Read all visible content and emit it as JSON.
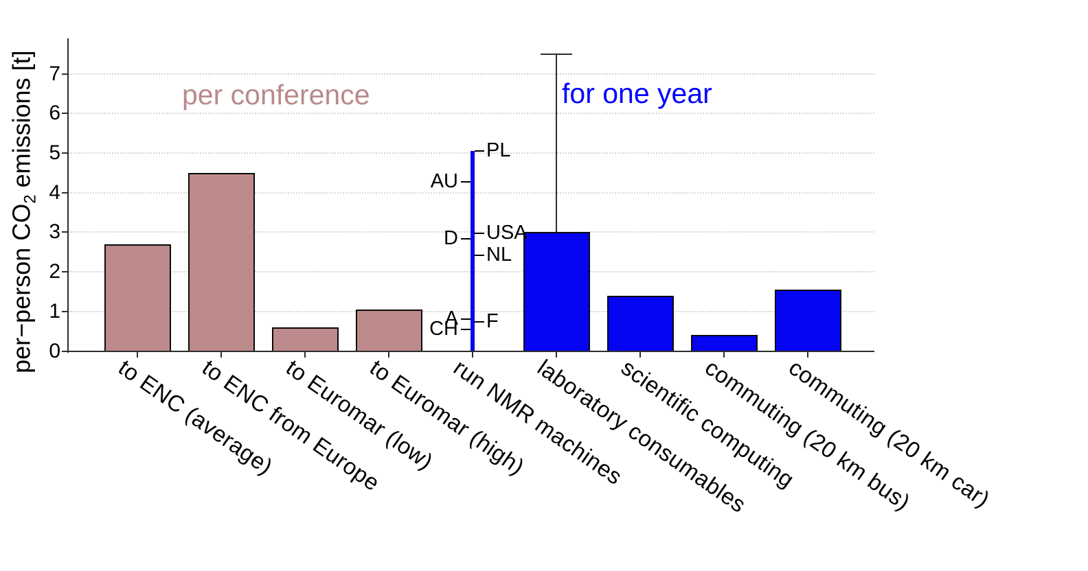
{
  "chart_data": {
    "type": "bar",
    "title": "",
    "ylabel": "per-person CO2 emissions [t]",
    "ylabel_parts": {
      "pre": "per−person CO",
      "sub": "2",
      "post": " emissions [t]"
    },
    "xlabel": "",
    "ylim": [
      0,
      7.85
    ],
    "yticks": [
      0,
      1,
      2,
      3,
      4,
      5,
      6,
      7
    ],
    "grid": "horizontal-dotted",
    "legend_position": "none",
    "categories": [
      "to ENC (average)",
      "to ENC from Europe",
      "to Euromar (low)",
      "to Euromar (high)",
      "run NMR machines",
      "laboratory consumables",
      "scientific computing",
      "commuting (20 km bus)",
      "commuting (20 km car)"
    ],
    "values": [
      2.7,
      4.5,
      0.6,
      1.05,
      5.05,
      3.0,
      1.4,
      0.4,
      1.55
    ],
    "groups": [
      {
        "label": "per conference",
        "color": "#bc8a8a",
        "category_indices": [
          0,
          1,
          2,
          3
        ]
      },
      {
        "label": "for one year",
        "color": "#0505f2",
        "category_indices": [
          4,
          5,
          6,
          7,
          8
        ]
      }
    ],
    "nmr_line": {
      "category": "run NMR machines",
      "style": "thin-vertical-line",
      "top_value": 5.05,
      "markers": [
        {
          "label": "CH",
          "value": 0.55,
          "side": "left"
        },
        {
          "label": "A",
          "value": 0.81,
          "side": "left"
        },
        {
          "label": "F",
          "value": 0.74,
          "side": "right"
        },
        {
          "label": "NL",
          "value": 2.42,
          "side": "right"
        },
        {
          "label": "D",
          "value": 2.84,
          "side": "left"
        },
        {
          "label": "USA",
          "value": 2.97,
          "side": "right"
        },
        {
          "label": "AU",
          "value": 4.27,
          "side": "left"
        },
        {
          "label": "PL",
          "value": 5.05,
          "side": "right"
        }
      ]
    },
    "error_bar": {
      "category": "laboratory consumables",
      "value": 3.0,
      "upper": 7.5
    }
  },
  "colors": {
    "rosy_fill": "#bc8a8a",
    "rosy_title": "#b98a8a",
    "blue_fill": "#0505f2",
    "blue_title": "#0000ff",
    "bar_edge": "#0a0a0a",
    "axis": "#2e2e2e",
    "grid": "#d4d4d4",
    "text": "#000000",
    "background": "#ffffff"
  }
}
